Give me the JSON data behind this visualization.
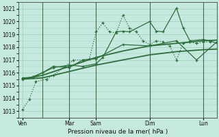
{
  "xlabel": "Pression niveau de la mer( hPa )",
  "bg_color": "#c5e8df",
  "grid_color": "#9fcfbf",
  "line_color": "#2d6e3a",
  "ylim": [
    1012.5,
    1021.5
  ],
  "yticks": [
    1013,
    1014,
    1015,
    1016,
    1017,
    1018,
    1019,
    1020,
    1021
  ],
  "x_day_labels": [
    "Ven",
    "",
    "Mar",
    "Sam",
    "",
    "Dim",
    "",
    "Lun"
  ],
  "x_day_positions": [
    0,
    1.5,
    3.5,
    5.5,
    7.5,
    9.5,
    11.5,
    13.5
  ],
  "xlim": [
    -0.3,
    14.5
  ],
  "vline_color": "#1a3a1a",
  "vline_positions": [
    1.5,
    3.5,
    5.5,
    9.5,
    13.5
  ],
  "series": [
    {
      "x": [
        0.0,
        0.5,
        1.0,
        1.8,
        2.3,
        3.2,
        3.8,
        4.5,
        5.0,
        5.5,
        6.0,
        6.5,
        7.0,
        7.5,
        8.0,
        8.5,
        9.0,
        9.5,
        10.0,
        10.5,
        11.0,
        11.5,
        12.0,
        12.5,
        13.0,
        13.5,
        14.0
      ],
      "y": [
        1013.1,
        1013.9,
        1015.3,
        1015.5,
        1015.8,
        1016.5,
        1017.0,
        1017.0,
        1017.1,
        1019.2,
        1019.9,
        1019.2,
        1019.1,
        1020.5,
        1019.5,
        1019.2,
        1018.5,
        1018.2,
        1018.5,
        1018.4,
        1018.1,
        1017.0,
        1018.3,
        1018.4,
        1018.3,
        1018.4,
        1018.4
      ],
      "linestyle": "dotted",
      "marker": "+",
      "lw": 0.9,
      "ms": 3.5
    },
    {
      "x": [
        0.0,
        1.5,
        3.5,
        5.5,
        7.5,
        9.5,
        11.5,
        13.5,
        14.5
      ],
      "y": [
        1015.5,
        1015.8,
        1016.5,
        1017.2,
        1017.7,
        1018.1,
        1018.3,
        1018.5,
        1018.55
      ],
      "linestyle": "solid",
      "marker": null,
      "lw": 1.3,
      "ms": 0
    },
    {
      "x": [
        0.0,
        1.5,
        3.5,
        5.5,
        7.5,
        9.5,
        11.5,
        13.5,
        14.5
      ],
      "y": [
        1015.5,
        1015.6,
        1016.1,
        1016.6,
        1017.0,
        1017.4,
        1017.65,
        1017.8,
        1017.85
      ],
      "linestyle": "solid",
      "marker": null,
      "lw": 1.3,
      "ms": 0
    },
    {
      "x": [
        0.0,
        0.8,
        1.5,
        2.3,
        3.5,
        4.5,
        5.5,
        6.0,
        7.0,
        7.5,
        8.0,
        9.5,
        10.0,
        10.5,
        11.5,
        12.0,
        12.5,
        13.5,
        14.0,
        14.5
      ],
      "y": [
        1015.6,
        1015.65,
        1016.0,
        1016.4,
        1016.6,
        1016.5,
        1016.7,
        1017.2,
        1019.2,
        1019.25,
        1019.2,
        1020.0,
        1019.25,
        1019.2,
        1021.05,
        1019.5,
        1018.5,
        1018.6,
        1018.5,
        1018.3
      ],
      "linestyle": "solid",
      "marker": "+",
      "lw": 0.9,
      "ms": 3.5
    },
    {
      "x": [
        0.0,
        0.8,
        1.5,
        2.3,
        3.5,
        4.5,
        5.5,
        7.5,
        9.5,
        11.5,
        13.0,
        14.5
      ],
      "y": [
        1015.5,
        1015.7,
        1016.0,
        1016.5,
        1016.4,
        1017.0,
        1017.1,
        1018.2,
        1018.1,
        1018.5,
        1017.0,
        1018.4
      ],
      "linestyle": "solid",
      "marker": "+",
      "lw": 0.9,
      "ms": 3.5
    }
  ],
  "tick_fontsize": 5.5,
  "xlabel_fontsize": 6.5
}
